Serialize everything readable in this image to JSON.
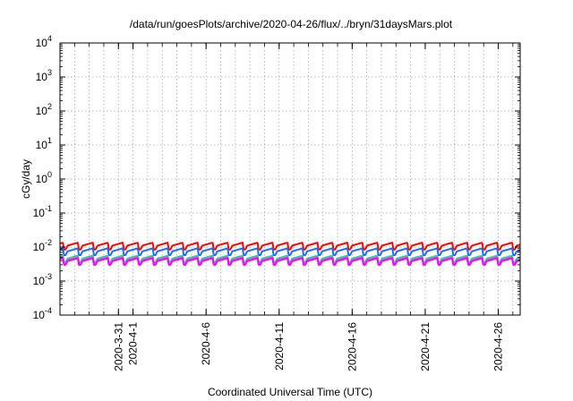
{
  "chart_data": {
    "type": "line",
    "title": "/data/run/goesPlots/archive/2020-04-26/flux/../bryn/31daysMars.plot",
    "xlabel": "Coordinated Universal Time (UTC)",
    "ylabel": "cGy/day",
    "yscale": "log",
    "ylim": [
      0.0001,
      10000
    ],
    "xlim": [
      "2020-03-27",
      "2020-04-27T12:00"
    ],
    "y_ticks": [
      {
        "base": "10",
        "exp": "-4"
      },
      {
        "base": "10",
        "exp": "-3"
      },
      {
        "base": "10",
        "exp": "-2"
      },
      {
        "base": "10",
        "exp": "-1"
      },
      {
        "base": "10",
        "exp": "0"
      },
      {
        "base": "10",
        "exp": "1"
      },
      {
        "base": "10",
        "exp": "2"
      },
      {
        "base": "10",
        "exp": "3"
      },
      {
        "base": "10",
        "exp": "4"
      }
    ],
    "x_ticks": [
      {
        "label": "2020-3-31",
        "date": "2020-03-31"
      },
      {
        "label": "2020-4-1",
        "date": "2020-04-01"
      },
      {
        "label": "2020-4-6",
        "date": "2020-04-06"
      },
      {
        "label": "2020-4-11",
        "date": "2020-04-11"
      },
      {
        "label": "2020-4-16",
        "date": "2020-04-16"
      },
      {
        "label": "2020-4-21",
        "date": "2020-04-21"
      },
      {
        "label": "2020-4-26",
        "date": "2020-04-26"
      }
    ],
    "grid": true,
    "period_hours": 24.6,
    "series": [
      {
        "color": "#ff0000",
        "min": 0.0085,
        "max": 0.0135
      },
      {
        "color": "#1f6bff",
        "min": 0.0058,
        "max": 0.0092
      },
      {
        "color": "#33cc99",
        "min": 0.0036,
        "max": 0.0056
      },
      {
        "color": "#aa66cc",
        "min": 0.0032,
        "max": 0.005
      },
      {
        "color": "#ff00ff",
        "min": 0.003,
        "max": 0.0047
      }
    ]
  }
}
